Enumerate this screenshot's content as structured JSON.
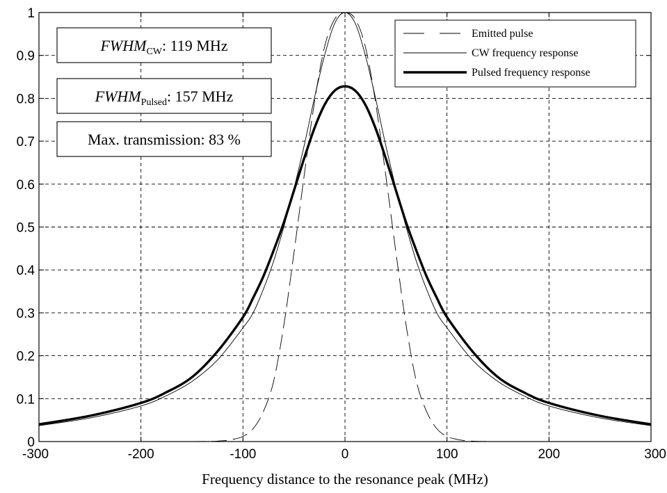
{
  "chart_data": {
    "type": "line",
    "title": "",
    "xlabel": "Frequency distance to the resonance peak (MHz)",
    "ylabel": "",
    "xlim": [
      -300,
      300
    ],
    "ylim": [
      0,
      1
    ],
    "grid": true,
    "legend_position": "top-right",
    "x_ticks": [
      "-300",
      "-200",
      "-100",
      "0",
      "100",
      "200",
      "300"
    ],
    "y_ticks": [
      "0",
      "0.1",
      "0.2",
      "0.3",
      "0.4",
      "0.5",
      "0.6",
      "0.7",
      "0.8",
      "0.9",
      "1"
    ],
    "annotations": [
      {
        "prefix": "FWHM",
        "sub": "CW",
        "suffix": ": 119 MHz"
      },
      {
        "prefix": "FWHM",
        "sub": "Pulsed",
        "suffix": ": 157 MHz"
      },
      {
        "prefix": "",
        "sub": "",
        "suffix": "Max. transmission: 83 %"
      }
    ],
    "series": [
      {
        "name": "Emitted pulse",
        "style": "dashed",
        "x": [
          -300,
          -150,
          -120,
          -110,
          -100,
          -90,
          -80,
          -70,
          -60,
          -50,
          -40,
          -30,
          -20,
          -10,
          0,
          10,
          20,
          30,
          40,
          50,
          60,
          70,
          80,
          90,
          100,
          110,
          120,
          150,
          300
        ],
        "y": [
          0,
          0,
          0.002,
          0.005,
          0.012,
          0.03,
          0.07,
          0.14,
          0.27,
          0.44,
          0.62,
          0.79,
          0.92,
          0.985,
          1.0,
          0.985,
          0.92,
          0.79,
          0.62,
          0.44,
          0.27,
          0.14,
          0.07,
          0.03,
          0.012,
          0.005,
          0.002,
          0,
          0
        ]
      },
      {
        "name": "CW frequency response",
        "style": "thin",
        "x": [
          -300,
          -250,
          -200,
          -175,
          -150,
          -125,
          -100,
          -90,
          -80,
          -70,
          -60,
          -50,
          -40,
          -30,
          -20,
          -10,
          0,
          10,
          20,
          30,
          40,
          50,
          60,
          70,
          80,
          90,
          100,
          125,
          150,
          175,
          200,
          250,
          300
        ],
        "y": [
          0.037,
          0.055,
          0.083,
          0.107,
          0.14,
          0.19,
          0.265,
          0.3,
          0.355,
          0.42,
          0.5,
          0.59,
          0.69,
          0.8,
          0.9,
          0.975,
          1.0,
          0.975,
          0.9,
          0.8,
          0.69,
          0.59,
          0.5,
          0.42,
          0.355,
          0.3,
          0.265,
          0.19,
          0.14,
          0.107,
          0.083,
          0.055,
          0.037
        ]
      },
      {
        "name": "Pulsed frequency response",
        "style": "thick",
        "x": [
          -300,
          -250,
          -200,
          -175,
          -150,
          -125,
          -100,
          -90,
          -80,
          -70,
          -60,
          -50,
          -40,
          -30,
          -20,
          -10,
          0,
          10,
          20,
          30,
          40,
          50,
          60,
          70,
          80,
          90,
          100,
          125,
          150,
          175,
          200,
          250,
          300
        ],
        "y": [
          0.04,
          0.06,
          0.09,
          0.115,
          0.15,
          0.21,
          0.29,
          0.335,
          0.385,
          0.445,
          0.51,
          0.585,
          0.66,
          0.73,
          0.785,
          0.818,
          0.828,
          0.818,
          0.785,
          0.73,
          0.66,
          0.585,
          0.51,
          0.445,
          0.385,
          0.335,
          0.29,
          0.21,
          0.15,
          0.115,
          0.09,
          0.06,
          0.04
        ]
      }
    ]
  }
}
